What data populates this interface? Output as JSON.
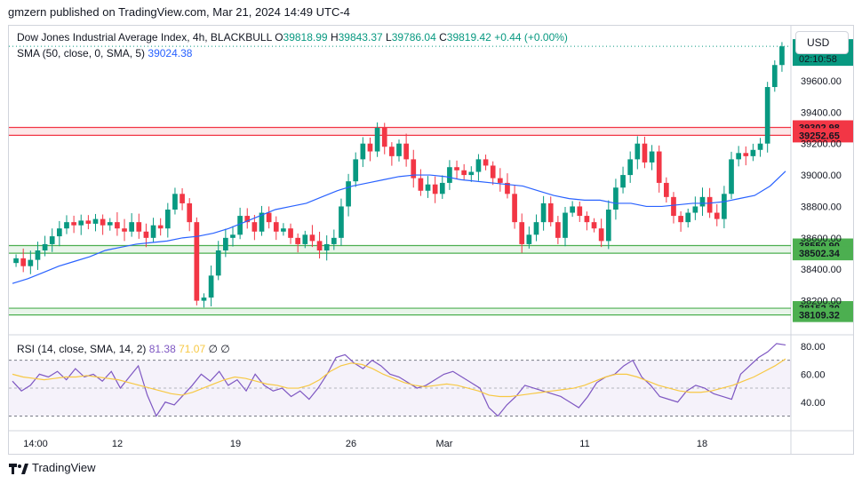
{
  "header": {
    "published": "gmzern published on TradingView.com, Mar 21, 2024 14:49 UTC-4"
  },
  "footer": {
    "brand": "TradingView",
    "logo": "tv-logo-icon"
  },
  "legend": {
    "title": "Dow Jones Industrial Average Index, 4h, BLACKBULL",
    "o_label": "O",
    "o": "39818.99",
    "h_label": "H",
    "h": "39843.37",
    "l_label": "L",
    "l": "39786.04",
    "c_label": "C",
    "c": "39819.42",
    "change": "+0.44 (+0.00%)",
    "sma_label": "SMA (50, close, 0, SMA, 5)",
    "sma_value": "39024.38",
    "rsi_label": "RSI (14, close, SMA, 14, 2)",
    "rsi_value": "81.38",
    "rsi_ma_value": "71.07",
    "rsi_extra": "∅ ∅"
  },
  "currency": "USD",
  "colors": {
    "up": "#089981",
    "down": "#f23645",
    "sma": "#2962ff",
    "rsi": "#7e57c2",
    "rsi_ma": "#f7c843",
    "resistance": "#f23645",
    "support": "#4caf50"
  },
  "chart_data": [
    {
      "type": "candlestick",
      "title": "Dow Jones Industrial Average Index, 4h, BLACKBULL",
      "y_tick_labels": [
        "38200.00",
        "38400.00",
        "38600.00",
        "38800.00",
        "39000.00",
        "39200.00",
        "39400.00",
        "39600.00"
      ],
      "x_tick_labels": [
        "14:00",
        "12",
        "19",
        "26",
        "Mar",
        "11",
        "18"
      ],
      "current_price": "39819.42",
      "countdown": "02:10:58",
      "levels": [
        {
          "kind": "resistance",
          "upper": 39302.98,
          "lower": 39252.65,
          "upper_label": "39302.98",
          "lower_label": "39252.65"
        },
        {
          "kind": "support",
          "upper": 38550.9,
          "lower": 38502.34,
          "upper_label": "38550.90",
          "lower_label": "38502.34"
        },
        {
          "kind": "support",
          "upper": 38152.3,
          "lower": 38109.32,
          "upper_label": "38152.30",
          "lower_label": "38109.32"
        }
      ],
      "close_path": [
        38470,
        38420,
        38460,
        38520,
        38560,
        38610,
        38660,
        38700,
        38680,
        38710,
        38690,
        38720,
        38680,
        38700,
        38660,
        38640,
        38700,
        38640,
        38600,
        38680,
        38660,
        38780,
        38880,
        38820,
        38700,
        38200,
        38220,
        38360,
        38520,
        38600,
        38620,
        38740,
        38700,
        38640,
        38760,
        38700,
        38640,
        38660,
        38600,
        38560,
        38620,
        38580,
        38520,
        38560,
        38600,
        38800,
        38960,
        39100,
        39200,
        39150,
        39300,
        39180,
        39120,
        39200,
        39100,
        38980,
        38900,
        38940,
        38880,
        38950,
        39050,
        39030,
        39000,
        39020,
        39100,
        39060,
        38980,
        38950,
        38880,
        38700,
        38560,
        38620,
        38700,
        38820,
        38700,
        38600,
        38760,
        38800,
        38740,
        38700,
        38660,
        38580,
        38780,
        38920,
        39000,
        39100,
        39200,
        39080,
        39150,
        38950,
        38860,
        38740,
        38700,
        38760,
        38800,
        38860,
        38760,
        38720,
        38880,
        39100,
        39140,
        39120,
        39160,
        39200,
        39560,
        39700,
        39819
      ],
      "sma_path": [
        38310,
        38340,
        38380,
        38420,
        38450,
        38480,
        38520,
        38540,
        38560,
        38570,
        38580,
        38600,
        38610,
        38630,
        38660,
        38700,
        38740,
        38780,
        38800,
        38820,
        38860,
        38900,
        38930,
        38950,
        38970,
        38990,
        39000,
        39000,
        38990,
        38970,
        38960,
        38950,
        38940,
        38930,
        38900,
        38870,
        38850,
        38840,
        38840,
        38820,
        38820,
        38800,
        38800,
        38810,
        38820,
        38820,
        38830,
        38850,
        38870,
        38930,
        39024
      ]
    },
    {
      "type": "line",
      "title": "RSI (14, close, SMA, 14, 2)",
      "y_tick_labels": [
        "40.00",
        "60.00",
        "80.00"
      ],
      "rsi_path": [
        55,
        48,
        52,
        60,
        58,
        62,
        56,
        64,
        58,
        60,
        55,
        62,
        50,
        58,
        66,
        45,
        30,
        40,
        38,
        45,
        52,
        60,
        55,
        62,
        52,
        56,
        48,
        60,
        52,
        48,
        50,
        44,
        48,
        42,
        50,
        60,
        72,
        74,
        68,
        64,
        70,
        66,
        60,
        58,
        54,
        50,
        52,
        56,
        60,
        62,
        58,
        54,
        50,
        36,
        30,
        38,
        44,
        52,
        50,
        48,
        46,
        44,
        40,
        36,
        44,
        54,
        58,
        60,
        66,
        70,
        58,
        52,
        44,
        42,
        40,
        48,
        52,
        50,
        46,
        44,
        42,
        60,
        66,
        72,
        76,
        82,
        81
      ],
      "rsi_ma_path": [
        60,
        58,
        57,
        56,
        57,
        58,
        58,
        59,
        58,
        57,
        56,
        54,
        52,
        50,
        48,
        46,
        45,
        47,
        50,
        53,
        56,
        58,
        57,
        55,
        53,
        52,
        50,
        50,
        52,
        56,
        62,
        66,
        68,
        67,
        64,
        60,
        57,
        54,
        52,
        51,
        52,
        53,
        52,
        50,
        48,
        45,
        44,
        44,
        45,
        46,
        47,
        48,
        49,
        50,
        52,
        55,
        58,
        60,
        60,
        58,
        55,
        52,
        50,
        48,
        47,
        47,
        48,
        50,
        52,
        55,
        58,
        62,
        66,
        71
      ],
      "overbought": 70,
      "oversold": 30,
      "current_rsi": "81.38",
      "rsi_ma": "71.07",
      "rsi_axis_label": "80.00"
    }
  ],
  "time_axis": {
    "labels": [
      "14:00",
      "12",
      "19",
      "26",
      "Mar",
      "11",
      "18"
    ]
  }
}
